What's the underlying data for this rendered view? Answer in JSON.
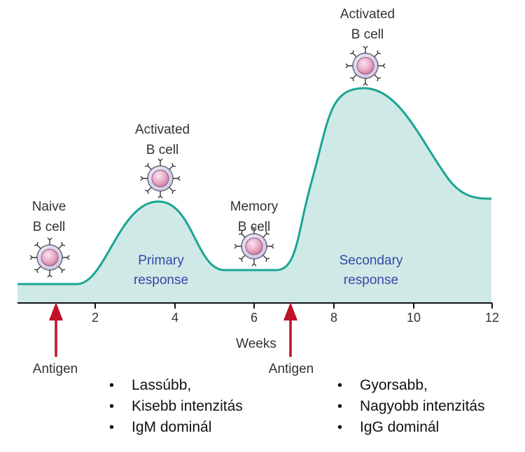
{
  "curve": {
    "fill": "#cfe9e6",
    "stroke": "#1aa593",
    "axis": "#111111"
  },
  "arrow_color": "#c0102a",
  "x_axis": {
    "label": "Weeks",
    "ticks": [
      "2",
      "4",
      "6",
      "8",
      "10",
      "12"
    ]
  },
  "cells": {
    "naive": {
      "line1": "Naive",
      "line2": "B cell"
    },
    "activated_primary": {
      "line1": "Activated",
      "line2": "B cell"
    },
    "memory": {
      "line1": "Memory",
      "line2": "B cell"
    },
    "activated_secondary": {
      "line1": "Activated",
      "line2": "B cell"
    }
  },
  "responses": {
    "primary": {
      "line1": "Primary",
      "line2": "response"
    },
    "secondary": {
      "line1": "Secondary",
      "line2": "response"
    }
  },
  "antigen": {
    "first": "Antigen",
    "second": "Antigen"
  },
  "notes_left": [
    "Lassúbb,",
    "Kisebb intenzitás",
    "IgM dominál"
  ],
  "notes_right": [
    "Gyorsabb,",
    "Nagyobb intenzitás",
    "IgG dominál"
  ]
}
